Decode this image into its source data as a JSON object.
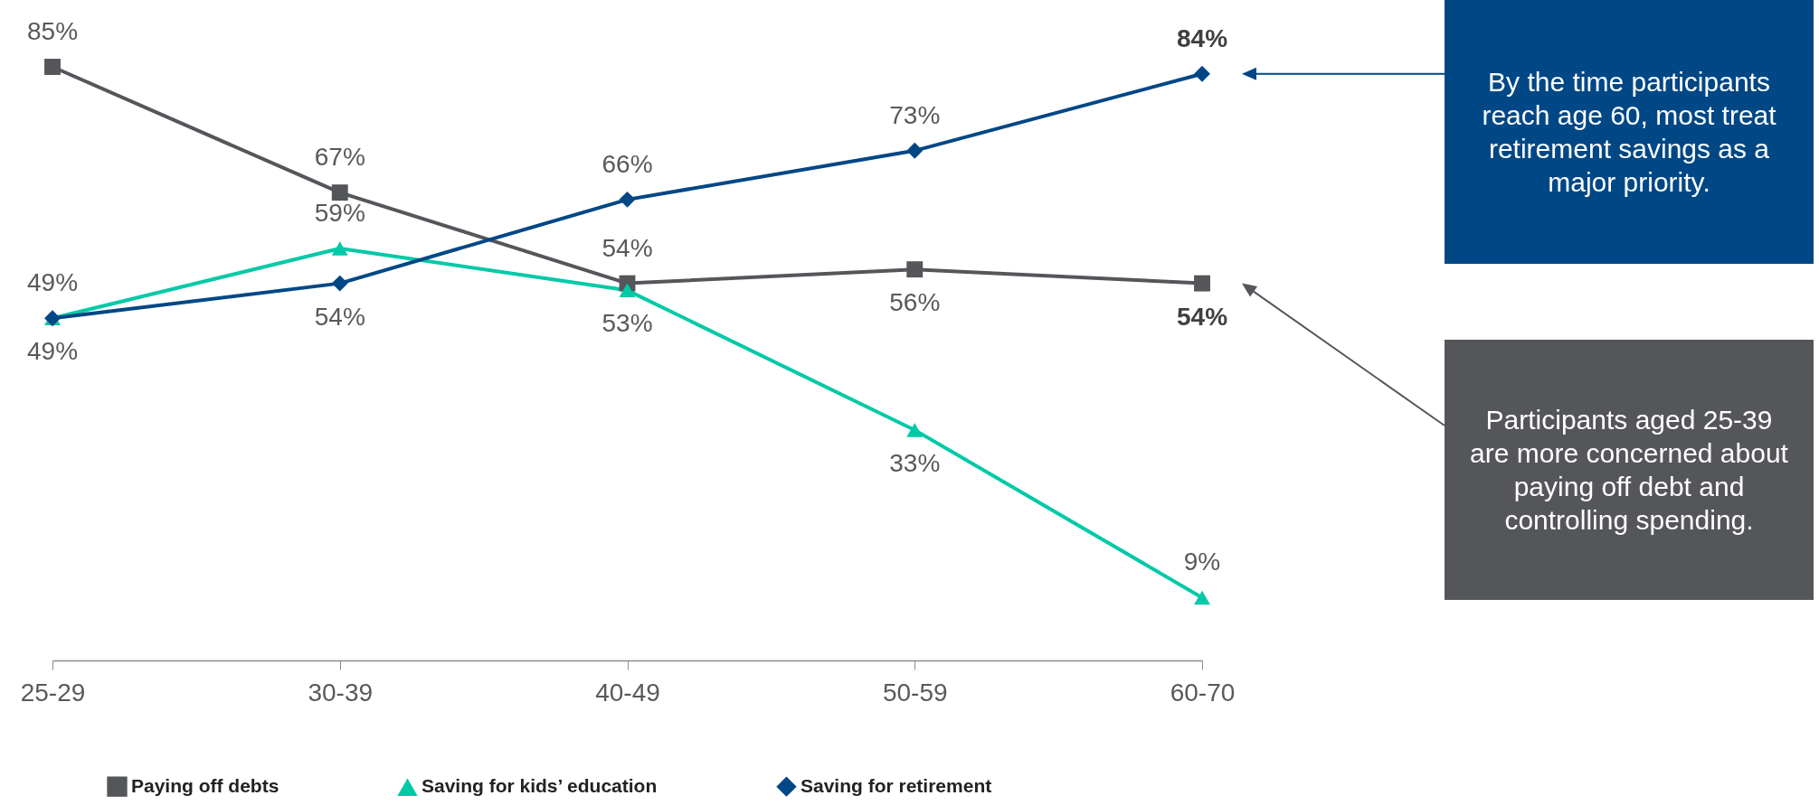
{
  "chart_data": {
    "type": "line",
    "categories": [
      "25-29",
      "30-39",
      "40-49",
      "50-59",
      "60-70"
    ],
    "tick_labels": "x",
    "legend": "bottom",
    "series": [
      {
        "name": "Paying off debts",
        "color": "#54565a",
        "marker": "square",
        "values": [
          85,
          67,
          54,
          56,
          54
        ],
        "value_labels": [
          "85%",
          "67%",
          "54%",
          "56%",
          "54%"
        ]
      },
      {
        "name": "Saving for kids’ education",
        "color": "#00c9a7",
        "marker": "triangle",
        "values": [
          49,
          59,
          53,
          33,
          9
        ],
        "value_labels": [
          "49%",
          "59%",
          "53%",
          "33%",
          "9%"
        ]
      },
      {
        "name": "Saving for retirement",
        "color": "#004785",
        "marker": "diamond",
        "values": [
          49,
          54,
          66,
          73,
          84
        ],
        "value_labels": [
          "49%",
          "54%",
          "66%",
          "73%",
          "84%"
        ]
      }
    ],
    "annotations": [
      "By the time participants reach age 60, most treat retirement savings as a major priority.",
      "Participants aged 25-39 are more concerned about paying off debt and controlling spending."
    ]
  }
}
